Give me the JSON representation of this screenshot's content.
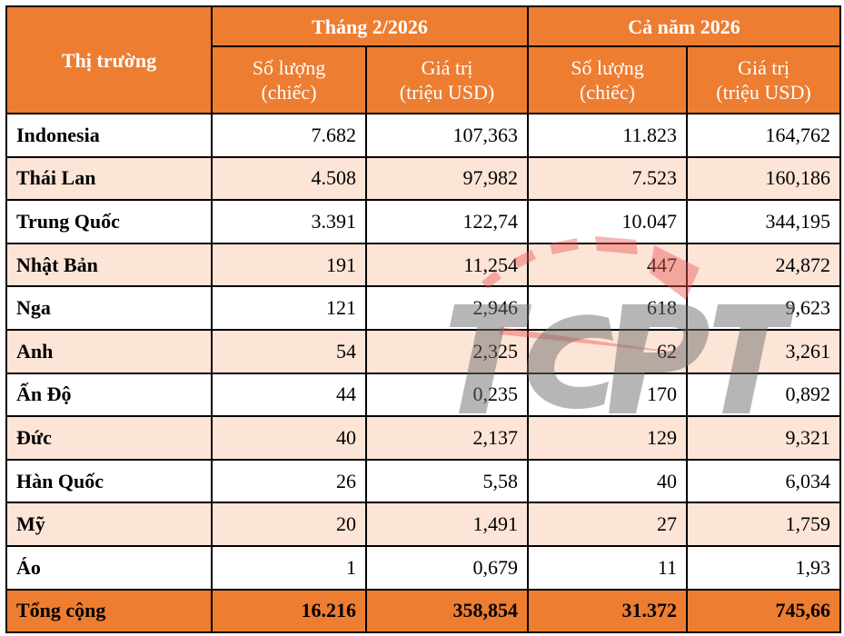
{
  "header": {
    "market_label": "Thị trường",
    "group_month": "Tháng 2/2026",
    "group_year": "Cả năm 2026",
    "qty_label_1": "Số lượng",
    "qty_label_2": "(chiếc)",
    "val_label_1": "Giá trị",
    "val_label_2": "(triệu USD)"
  },
  "rows": [
    {
      "market": "Indonesia",
      "m_qty": "7.682",
      "m_val": "107,363",
      "y_qty": "11.823",
      "y_val": "164,762"
    },
    {
      "market": "Thái Lan",
      "m_qty": "4.508",
      "m_val": "97,982",
      "y_qty": "7.523",
      "y_val": "160,186"
    },
    {
      "market": "Trung Quốc",
      "m_qty": "3.391",
      "m_val": "122,74",
      "y_qty": "10.047",
      "y_val": "344,195"
    },
    {
      "market": "Nhật Bản",
      "m_qty": "191",
      "m_val": "11,254",
      "y_qty": "447",
      "y_val": "24,872"
    },
    {
      "market": "Nga",
      "m_qty": "121",
      "m_val": "2,946",
      "y_qty": "618",
      "y_val": "9,623"
    },
    {
      "market": "Anh",
      "m_qty": "54",
      "m_val": "2,325",
      "y_qty": "62",
      "y_val": "3,261"
    },
    {
      "market": "Ấn Độ",
      "m_qty": "44",
      "m_val": "0,235",
      "y_qty": "170",
      "y_val": "0,892"
    },
    {
      "market": "Đức",
      "m_qty": "40",
      "m_val": "2,137",
      "y_qty": "129",
      "y_val": "9,321"
    },
    {
      "market": "Hàn Quốc",
      "m_qty": "26",
      "m_val": "5,58",
      "y_qty": "40",
      "y_val": "6,034"
    },
    {
      "market": "Mỹ",
      "m_qty": "20",
      "m_val": "1,491",
      "y_qty": "27",
      "y_val": "1,759"
    },
    {
      "market": "Áo",
      "m_qty": "1",
      "m_val": "0,679",
      "y_qty": "11",
      "y_val": "1,93"
    }
  ],
  "total": {
    "market": "Tổng cộng",
    "m_qty": "16.216",
    "m_val": "358,854",
    "y_qty": "31.372",
    "y_val": "745,66"
  },
  "watermark": "TCPT",
  "colors": {
    "header": "#ED7D31",
    "alt_row": "#FCE4D6"
  }
}
